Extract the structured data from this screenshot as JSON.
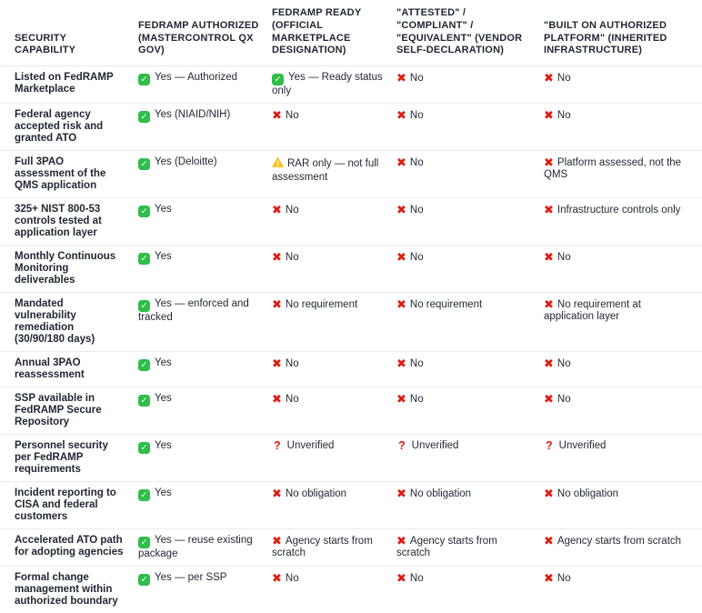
{
  "chart_data": {
    "type": "table",
    "columns": [
      "SECURITY CAPABILITY",
      "FEDRAMP AUTHORIZED (MASTERCONTROL QX GOV)",
      "FEDRAMP READY (OFFICIAL MARKETPLACE DESIGNATION)",
      "\"ATTESTED\" / \"COMPLIANT\" / \"EQUIVALENT\" (VENDOR SELF-DECLARATION)",
      "\"BUILT ON AUTHORIZED PLATFORM\" (INHERITED INFRASTRUCTURE)"
    ],
    "rows": [
      {
        "capability": "Listed on FedRAMP Marketplace",
        "cells": [
          {
            "icon": "check",
            "text": "Yes — Authorized"
          },
          {
            "icon": "check",
            "text": "Yes — Ready status only"
          },
          {
            "icon": "cross",
            "text": "No"
          },
          {
            "icon": "cross",
            "text": "No"
          }
        ]
      },
      {
        "capability": "Federal agency accepted risk and granted ATO",
        "cells": [
          {
            "icon": "check",
            "text": "Yes (NIAID/NIH)"
          },
          {
            "icon": "cross",
            "text": "No"
          },
          {
            "icon": "cross",
            "text": "No"
          },
          {
            "icon": "cross",
            "text": "No"
          }
        ]
      },
      {
        "capability": "Full 3PAO assessment of the QMS application",
        "cells": [
          {
            "icon": "check",
            "text": "Yes (Deloitte)"
          },
          {
            "icon": "warning",
            "text": "RAR only — not full assessment"
          },
          {
            "icon": "cross",
            "text": "No"
          },
          {
            "icon": "cross",
            "text": "Platform assessed, not the QMS"
          }
        ]
      },
      {
        "capability": "325+ NIST 800-53 controls tested at application layer",
        "cells": [
          {
            "icon": "check",
            "text": "Yes"
          },
          {
            "icon": "cross",
            "text": "No"
          },
          {
            "icon": "cross",
            "text": "No"
          },
          {
            "icon": "cross",
            "text": "Infrastructure controls only"
          }
        ]
      },
      {
        "capability": "Monthly Continuous Monitoring deliverables",
        "cells": [
          {
            "icon": "check",
            "text": "Yes"
          },
          {
            "icon": "cross",
            "text": "No"
          },
          {
            "icon": "cross",
            "text": "No"
          },
          {
            "icon": "cross",
            "text": "No"
          }
        ]
      },
      {
        "capability": "Mandated vulnerability remediation (30/90/180 days)",
        "cells": [
          {
            "icon": "check",
            "text": "Yes — enforced and tracked"
          },
          {
            "icon": "cross",
            "text": "No requirement"
          },
          {
            "icon": "cross",
            "text": "No requirement"
          },
          {
            "icon": "cross",
            "text": "No requirement at application layer"
          }
        ]
      },
      {
        "capability": "Annual 3PAO reassessment",
        "cells": [
          {
            "icon": "check",
            "text": "Yes"
          },
          {
            "icon": "cross",
            "text": "No"
          },
          {
            "icon": "cross",
            "text": "No"
          },
          {
            "icon": "cross",
            "text": "No"
          }
        ]
      },
      {
        "capability": "SSP available in FedRAMP Secure Repository",
        "cells": [
          {
            "icon": "check",
            "text": "Yes"
          },
          {
            "icon": "cross",
            "text": "No"
          },
          {
            "icon": "cross",
            "text": "No"
          },
          {
            "icon": "cross",
            "text": "No"
          }
        ]
      },
      {
        "capability": "Personnel security per FedRAMP requirements",
        "cells": [
          {
            "icon": "check",
            "text": "Yes"
          },
          {
            "icon": "question",
            "text": "Unverified"
          },
          {
            "icon": "question",
            "text": "Unverified"
          },
          {
            "icon": "question",
            "text": "Unverified"
          }
        ]
      },
      {
        "capability": "Incident reporting to CISA and federal customers",
        "cells": [
          {
            "icon": "check",
            "text": "Yes"
          },
          {
            "icon": "cross",
            "text": "No obligation"
          },
          {
            "icon": "cross",
            "text": "No obligation"
          },
          {
            "icon": "cross",
            "text": "No obligation"
          }
        ]
      },
      {
        "capability": "Accelerated ATO path for adopting agencies",
        "cells": [
          {
            "icon": "check",
            "text": "Yes — reuse existing package"
          },
          {
            "icon": "cross",
            "text": "Agency starts from scratch"
          },
          {
            "icon": "cross",
            "text": "Agency starts from scratch"
          },
          {
            "icon": "cross",
            "text": "Agency starts from scratch"
          }
        ]
      },
      {
        "capability": "Formal change management within authorized boundary",
        "cells": [
          {
            "icon": "check",
            "text": "Yes — per SSP"
          },
          {
            "icon": "cross",
            "text": "No"
          },
          {
            "icon": "cross",
            "text": "No"
          },
          {
            "icon": "cross",
            "text": "No"
          }
        ]
      }
    ]
  },
  "icons": {
    "check": "check-icon",
    "cross": "cross-icon",
    "warning": "warning-icon",
    "question": "question-icon"
  },
  "colors": {
    "check_green": "#2fbe49",
    "cross_red": "#e01b0e",
    "warning_amber": "#ffc21e",
    "question_red": "#e01b0e",
    "text": "#1f2632",
    "divider": "#e9ebef",
    "background": "#ffffff"
  }
}
